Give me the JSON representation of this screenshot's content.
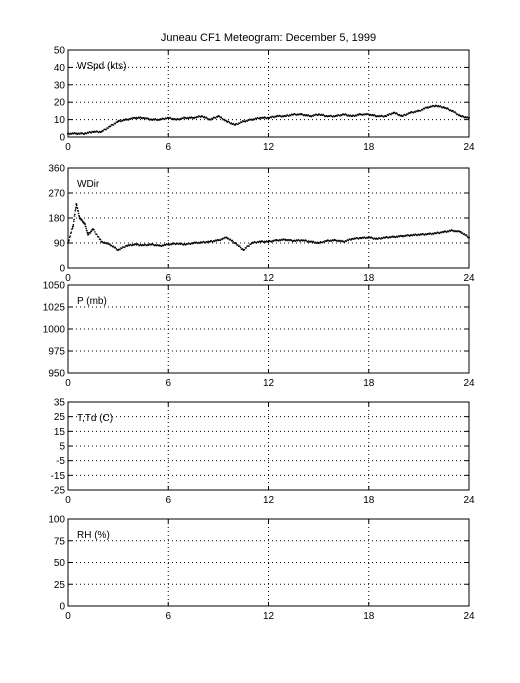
{
  "chart_data": [
    {
      "type": "scatter",
      "title": "Juneau CF1 Meteogram:  December  5, 1999",
      "ylabel": "WSpd (kts)",
      "xlim": [
        0,
        24
      ],
      "ylim": [
        0,
        50
      ],
      "xticks": [
        "0",
        "6",
        "12",
        "18",
        "24"
      ],
      "yticks": [
        "0",
        "10",
        "20",
        "30",
        "40",
        "50"
      ],
      "grid": true,
      "series": [
        {
          "x": [
            0,
            0.5,
            1,
            1.5,
            2,
            2.5,
            3,
            3.5,
            4,
            4.5,
            5,
            5.5,
            6,
            6.5,
            7,
            7.5,
            8,
            8.5,
            9,
            9.5,
            10,
            10.5,
            11,
            11.5,
            12,
            12.5,
            13,
            13.5,
            14,
            14.5,
            15,
            15.5,
            16,
            16.5,
            17,
            17.5,
            18,
            18.5,
            19,
            19.5,
            20,
            20.5,
            21,
            21.5,
            22,
            22.5,
            23,
            23.5,
            24
          ],
          "y": [
            2,
            2,
            2,
            3,
            3,
            6,
            9,
            10,
            11,
            11,
            10,
            10,
            11,
            10,
            11,
            11,
            12,
            10,
            12,
            9,
            7,
            9,
            10,
            11,
            11,
            12,
            12,
            13,
            13,
            12,
            13,
            12,
            12,
            13,
            12,
            13,
            13,
            12,
            12,
            14,
            12,
            14,
            15,
            17,
            18,
            17,
            15,
            12,
            11
          ]
        }
      ]
    },
    {
      "type": "scatter",
      "ylabel": "WDir",
      "xlim": [
        0,
        24
      ],
      "ylim": [
        0,
        360
      ],
      "xticks": [
        "0",
        "6",
        "12",
        "18",
        "24"
      ],
      "yticks": [
        "0",
        "90",
        "180",
        "270",
        "360"
      ],
      "grid": true,
      "series": [
        {
          "x": [
            0,
            0.3,
            0.5,
            0.7,
            1,
            1.2,
            1.5,
            2,
            2.5,
            3,
            3.5,
            4,
            4.5,
            5,
            5.5,
            6,
            6.5,
            7,
            7.5,
            8,
            8.5,
            9,
            9.5,
            10,
            10.5,
            11,
            11.5,
            12,
            12.5,
            13,
            13.5,
            14,
            14.5,
            15,
            15.5,
            16,
            16.5,
            17,
            17.5,
            18,
            18.5,
            19,
            19.5,
            20,
            20.5,
            21,
            21.5,
            22,
            22.5,
            23,
            23.5,
            24
          ],
          "y": [
            90,
            150,
            230,
            180,
            160,
            120,
            140,
            95,
            85,
            65,
            80,
            85,
            82,
            85,
            80,
            85,
            88,
            85,
            90,
            92,
            95,
            100,
            110,
            90,
            65,
            90,
            95,
            95,
            100,
            102,
            98,
            100,
            95,
            90,
            98,
            100,
            95,
            105,
            108,
            110,
            105,
            110,
            112,
            115,
            118,
            120,
            122,
            125,
            130,
            135,
            130,
            110
          ]
        }
      ]
    },
    {
      "type": "scatter",
      "ylabel": "P (mb)",
      "xlim": [
        0,
        24
      ],
      "ylim": [
        950,
        1050
      ],
      "xticks": [
        "0",
        "6",
        "12",
        "18",
        "24"
      ],
      "yticks": [
        "950",
        "975",
        "1000",
        "1025",
        "1050"
      ],
      "grid": true,
      "series": []
    },
    {
      "type": "scatter",
      "ylabel": "T,Td (C)",
      "xlim": [
        0,
        24
      ],
      "ylim": [
        -25,
        35
      ],
      "xticks": [
        "0",
        "6",
        "12",
        "18",
        "24"
      ],
      "yticks": [
        "-25",
        "-15",
        "-5",
        "5",
        "15",
        "25",
        "35"
      ],
      "grid": true,
      "series": []
    },
    {
      "type": "scatter",
      "ylabel": "RH (%)",
      "xlim": [
        0,
        24
      ],
      "ylim": [
        0,
        100
      ],
      "xticks": [
        "0",
        "6",
        "12",
        "18",
        "24"
      ],
      "yticks": [
        "0",
        "25",
        "50",
        "75",
        "100"
      ],
      "grid": true,
      "series": []
    }
  ]
}
